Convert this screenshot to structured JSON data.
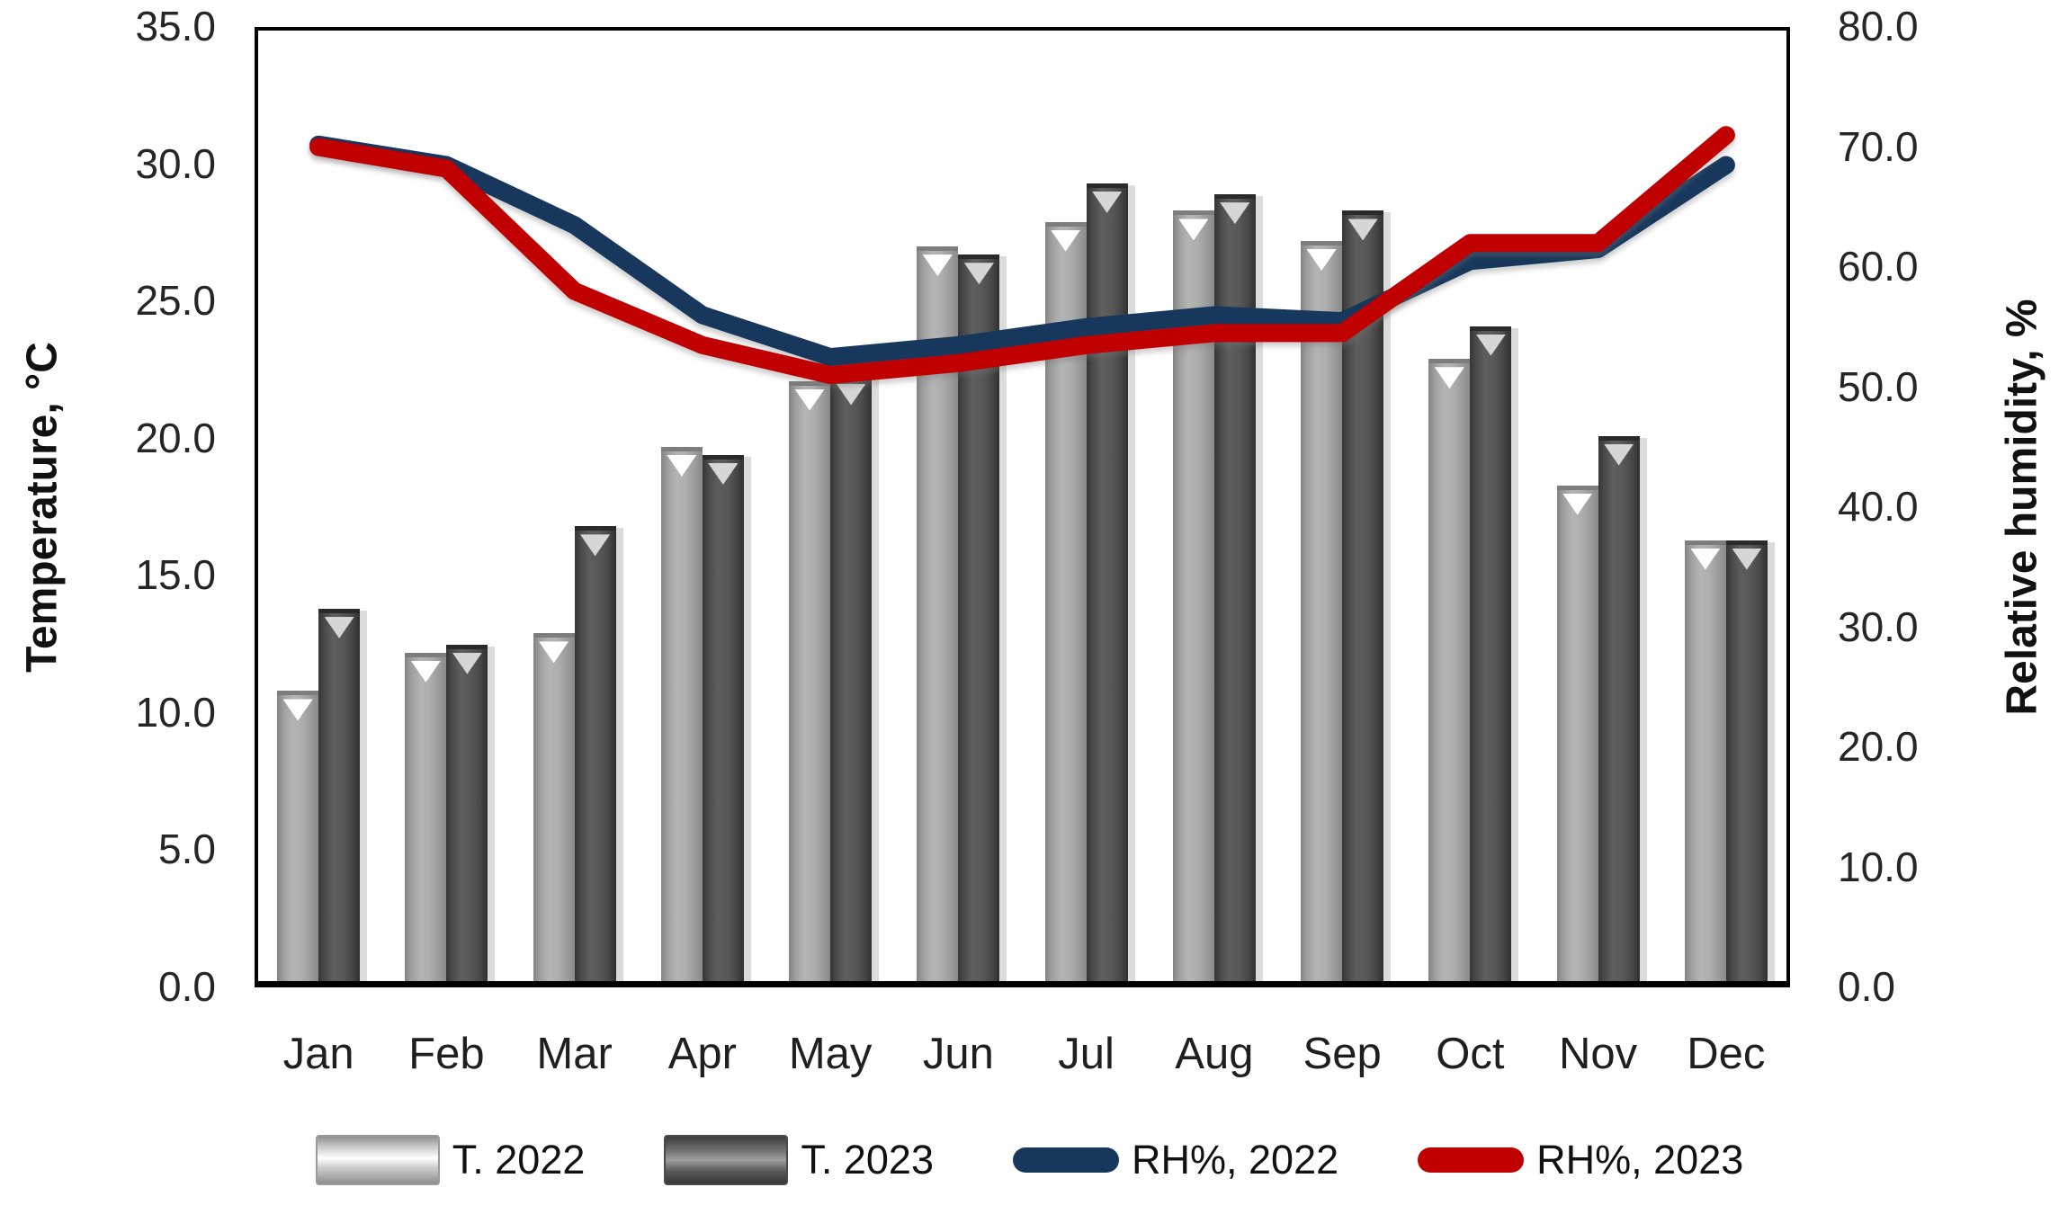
{
  "chart_data": {
    "type": "combo-bar-line",
    "categories": [
      "Jan",
      "Feb",
      "Mar",
      "Apr",
      "May",
      "Jun",
      "Jul",
      "Aug",
      "Sep",
      "Oct",
      "Nov",
      "Dec"
    ],
    "series": [
      {
        "name": "T. 2022",
        "type": "bar",
        "axis": "left",
        "color": "#a6a6a6",
        "values": [
          10.8,
          12.2,
          12.9,
          19.7,
          22.1,
          27.0,
          27.9,
          28.3,
          27.2,
          22.9,
          18.3,
          16.3
        ]
      },
      {
        "name": "T. 2023",
        "type": "bar",
        "axis": "left",
        "color": "#4f4f4f",
        "values": [
          13.8,
          12.5,
          16.8,
          19.4,
          22.3,
          26.7,
          29.3,
          28.9,
          28.3,
          24.1,
          20.1,
          16.3
        ]
      },
      {
        "name": "RH%, 2022",
        "type": "line",
        "axis": "right",
        "color": "#17375d",
        "values": [
          70.2,
          68.5,
          63.5,
          56.0,
          52.5,
          53.5,
          55.0,
          56.0,
          55.5,
          60.5,
          61.5,
          68.5
        ]
      },
      {
        "name": "RH%, 2023",
        "type": "line",
        "axis": "right",
        "color": "#c00000",
        "values": [
          70.0,
          68.2,
          58.0,
          53.5,
          51.0,
          52.0,
          53.5,
          54.5,
          54.5,
          62.0,
          62.0,
          71.0
        ]
      }
    ],
    "left_axis": {
      "label": "Temperature, °C",
      "min": 0,
      "max": 35,
      "step": 5,
      "tick_labels": [
        "35.0",
        "30.0",
        "25.0",
        "20.0",
        "15.0",
        "10.0",
        "5.0",
        "0.0"
      ]
    },
    "right_axis": {
      "label": "Relative humidity, %",
      "min": 0,
      "max": 80,
      "step": 10,
      "tick_labels": [
        "80.0",
        "70.0",
        "60.0",
        "50.0",
        "40.0",
        "30.0",
        "20.0",
        "10.0",
        "0.0"
      ]
    },
    "legend_position": "bottom",
    "grid": false,
    "plot_background": "#ffffff",
    "frame_color": "#000000",
    "text_color": "#262626"
  }
}
